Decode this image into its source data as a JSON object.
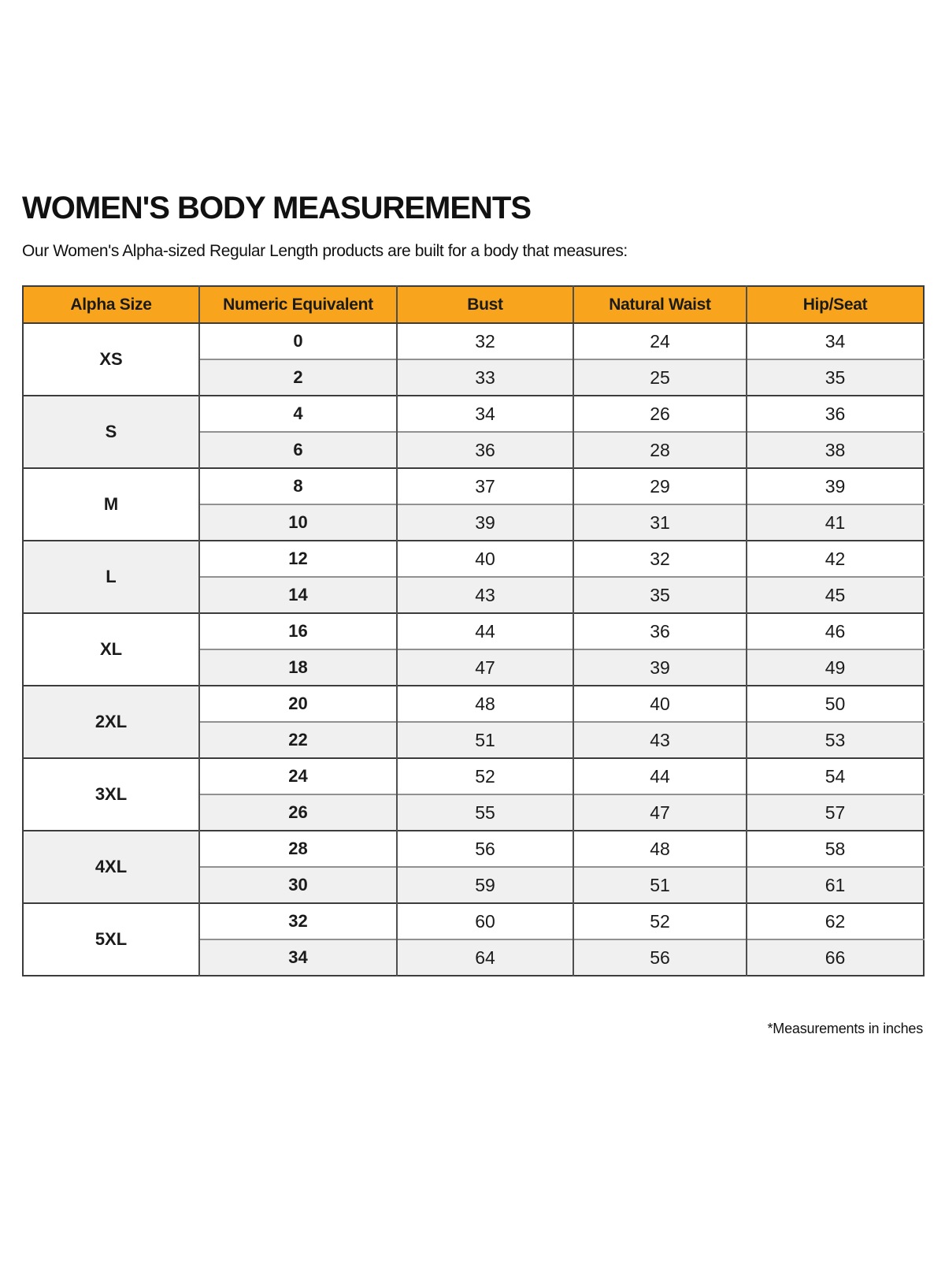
{
  "page": {
    "title": "WOMEN'S BODY MEASUREMENTS",
    "subtitle": "Our Women's Alpha-sized Regular Length products are built for a body that measures:",
    "footnote": "*Measurements in inches"
  },
  "colors": {
    "header_bg": "#F8A51D",
    "row_alt_bg": "#F0F0F0",
    "border_dark": "#3C3C3C",
    "border_column": "#4F4F4F",
    "border_row_inner": "#919191",
    "text": "#1B1B1B"
  },
  "table": {
    "columns": [
      "Alpha Size",
      "Numeric Equivalent",
      "Bust",
      "Natural Waist",
      "Hip/Seat"
    ],
    "units": "inches",
    "groups": [
      {
        "alpha": "XS",
        "rows": [
          {
            "numeric": "0",
            "bust": "32",
            "waist": "24",
            "hip": "34"
          },
          {
            "numeric": "2",
            "bust": "33",
            "waist": "25",
            "hip": "35"
          }
        ]
      },
      {
        "alpha": "S",
        "rows": [
          {
            "numeric": "4",
            "bust": "34",
            "waist": "26",
            "hip": "36"
          },
          {
            "numeric": "6",
            "bust": "36",
            "waist": "28",
            "hip": "38"
          }
        ]
      },
      {
        "alpha": "M",
        "rows": [
          {
            "numeric": "8",
            "bust": "37",
            "waist": "29",
            "hip": "39"
          },
          {
            "numeric": "10",
            "bust": "39",
            "waist": "31",
            "hip": "41"
          }
        ]
      },
      {
        "alpha": "L",
        "rows": [
          {
            "numeric": "12",
            "bust": "40",
            "waist": "32",
            "hip": "42"
          },
          {
            "numeric": "14",
            "bust": "43",
            "waist": "35",
            "hip": "45"
          }
        ]
      },
      {
        "alpha": "XL",
        "rows": [
          {
            "numeric": "16",
            "bust": "44",
            "waist": "36",
            "hip": "46"
          },
          {
            "numeric": "18",
            "bust": "47",
            "waist": "39",
            "hip": "49"
          }
        ]
      },
      {
        "alpha": "2XL",
        "rows": [
          {
            "numeric": "20",
            "bust": "48",
            "waist": "40",
            "hip": "50"
          },
          {
            "numeric": "22",
            "bust": "51",
            "waist": "43",
            "hip": "53"
          }
        ]
      },
      {
        "alpha": "3XL",
        "rows": [
          {
            "numeric": "24",
            "bust": "52",
            "waist": "44",
            "hip": "54"
          },
          {
            "numeric": "26",
            "bust": "55",
            "waist": "47",
            "hip": "57"
          }
        ]
      },
      {
        "alpha": "4XL",
        "rows": [
          {
            "numeric": "28",
            "bust": "56",
            "waist": "48",
            "hip": "58"
          },
          {
            "numeric": "30",
            "bust": "59",
            "waist": "51",
            "hip": "61"
          }
        ]
      },
      {
        "alpha": "5XL",
        "rows": [
          {
            "numeric": "32",
            "bust": "60",
            "waist": "52",
            "hip": "62"
          },
          {
            "numeric": "34",
            "bust": "64",
            "waist": "56",
            "hip": "66"
          }
        ]
      }
    ]
  }
}
